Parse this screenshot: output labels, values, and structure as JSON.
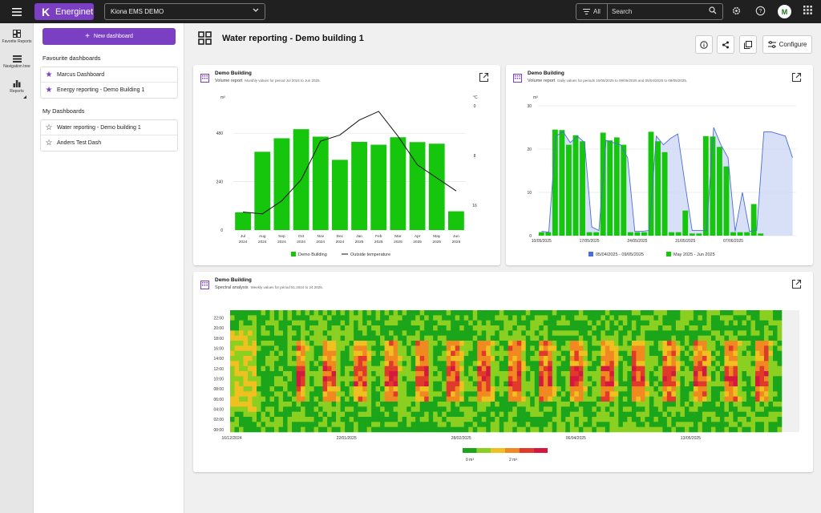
{
  "topbar": {
    "brand": "Energinet",
    "site": "Kiona EMS DEMO",
    "filter_label": "All",
    "search_placeholder": "Search",
    "avatar": "M"
  },
  "rail": {
    "items": [
      {
        "label": "Favorite Reports",
        "icon": "dashboard-icon"
      },
      {
        "label": "Navigation tree",
        "icon": "tree-icon"
      },
      {
        "label": "Reports",
        "icon": "bar-chart-icon"
      }
    ]
  },
  "sidebar": {
    "new_dashboard": "New dashboard",
    "favourites_heading": "Favourite dashboards",
    "favourites": [
      "Marcus Dashboard",
      "Energy reporting - Demo Building 1"
    ],
    "my_heading": "My Dashboards",
    "mine": [
      "Water reporting - Demo building 1",
      "Anders Test Dash"
    ]
  },
  "page": {
    "title": "Water reporting - Demo building 1",
    "configure": "Configure"
  },
  "cards": {
    "monthly": {
      "title": "Demo Building",
      "subtitle": "Volume report",
      "desc": "Monthly values for period Jul 2024 to Jun 2025."
    },
    "daily": {
      "title": "Demo Building",
      "subtitle": "Volume report",
      "desc": "Daily values for periods 10/05/2025 to 09/06/2025 and 05/04/2025 to 09/05/2025."
    },
    "spectral": {
      "title": "Demo Building",
      "subtitle": "Spectral analysis",
      "desc": "Weekly values for period 51.2024 to 24.2025."
    }
  },
  "colors": {
    "accent": "#7b3fc4",
    "bar_green": "#16c60c",
    "line_blue": "#4a6fd8",
    "area_blue": "#c9d5f3"
  },
  "chart_data": [
    {
      "type": "bar",
      "categories": [
        "Jul 2024",
        "Aug 2024",
        "Sep 2024",
        "Oct 2024",
        "Nov 2024",
        "Dec 2024",
        "Jan 2025",
        "Feb 2025",
        "Mar 2025",
        "Apr 2025",
        "May 2025",
        "Jun 2025"
      ],
      "ylabel": "m³",
      "y2label": "°C",
      "yticks": [
        0,
        240,
        480
      ],
      "y2ticks": [
        0,
        8,
        16
      ],
      "y2_inverted": true,
      "ylim": [
        0,
        600
      ],
      "y2lim": [
        0,
        20
      ],
      "series": [
        {
          "name": "Demo Building",
          "kind": "bar",
          "values": [
            88,
            388,
            455,
            500,
            463,
            348,
            437,
            423,
            460,
            436,
            428,
            93
          ]
        },
        {
          "name": "Outside temperature",
          "kind": "line",
          "axis": "y2",
          "values": [
            17.1,
            17.4,
            15.3,
            11.9,
            5.7,
            4.7,
            2.3,
            0.9,
            4.9,
            9.5,
            11.6,
            13.7
          ]
        }
      ],
      "legend": "bottom",
      "grid": true
    },
    {
      "type": "bar",
      "x_ticks": [
        "10/05/2025",
        "17/05/2025",
        "24/05/2025",
        "31/05/2025",
        "07/06/2025"
      ],
      "ylabel": "m³",
      "yticks": [
        0,
        10,
        20,
        30
      ],
      "ylim": [
        0,
        30
      ],
      "series": [
        {
          "name": "May 2025 - Jun 2025",
          "kind": "bar",
          "values": [
            0.8,
            0.8,
            24.5,
            24.4,
            21.0,
            23.2,
            21.8,
            0.8,
            0.8,
            23.8,
            22.0,
            22.7,
            21.0,
            0.8,
            0.8,
            0.8,
            24.0,
            21.8,
            19.3,
            0.8,
            0.8,
            5.8,
            0.5,
            0.5,
            23.0,
            22.9,
            20.5,
            16.0,
            0.8,
            0.8,
            0.8,
            7.3,
            0.5
          ]
        },
        {
          "name": "05/04/2025 - 09/05/2025",
          "kind": "area",
          "values": [
            1.0,
            0.8,
            23.0,
            24.0,
            21.5,
            23.0,
            21.5,
            2.0,
            1.2,
            22.0,
            21.5,
            21.0,
            18.0,
            1.0,
            1.0,
            1.2,
            23.0,
            21.0,
            22.5,
            23.5,
            12.0,
            1.2,
            1.2,
            1.2,
            25.0,
            21.0,
            18.0,
            1.0,
            10.0,
            1.0,
            1.2,
            24.0,
            24.0,
            23.5,
            23.0,
            18.0
          ]
        }
      ],
      "legend": "bottom",
      "grid": true
    },
    {
      "type": "heatmap",
      "title": "Spectral analysis",
      "x_ticks": [
        "16/12/2024",
        "22/01/2025",
        "28/02/2025",
        "06/04/2025",
        "13/05/2025"
      ],
      "y_ticks": [
        "00:00",
        "02:00",
        "04:00",
        "06:00",
        "08:00",
        "10:00",
        "12:00",
        "14:00",
        "16:00",
        "18:00",
        "20:00",
        "22:00"
      ],
      "scale_labels": [
        "0 m³",
        "2 m³"
      ],
      "scale_colors": [
        "#1aa51a",
        "#8bd020",
        "#f0c020",
        "#f08a20",
        "#e03a2a",
        "#d4183e"
      ]
    }
  ]
}
